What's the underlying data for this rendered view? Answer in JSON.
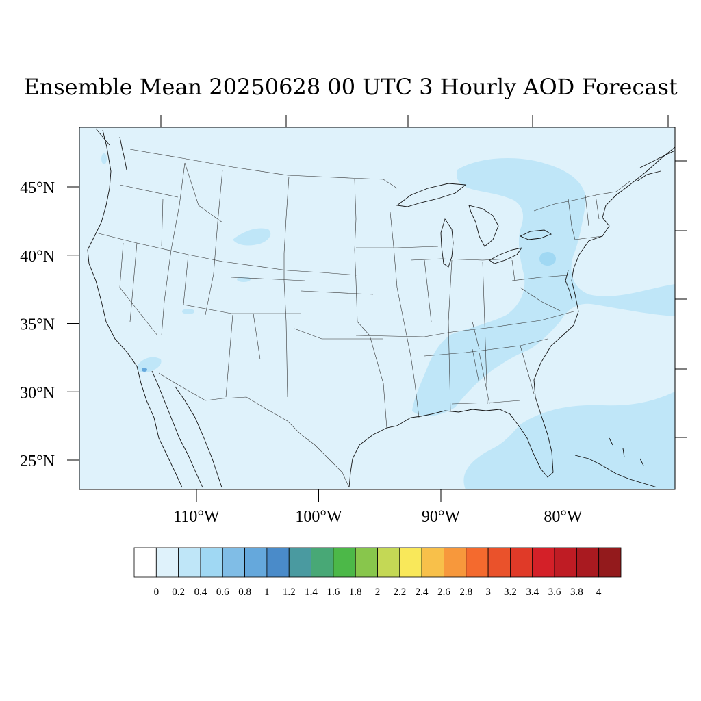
{
  "title": "Ensemble Mean 20250628 00 UTC 3 Hourly AOD Forecast",
  "map": {
    "background_color": "#dff2fb",
    "field_colors": {
      "level_02_04": "#bfe6f8",
      "level_04_06": "#a0d8f3"
    },
    "lat_labels": [
      {
        "text": "45°N",
        "lat": 45
      },
      {
        "text": "40°N",
        "lat": 40
      },
      {
        "text": "35°N",
        "lat": 35
      },
      {
        "text": "30°N",
        "lat": 30
      },
      {
        "text": "25°N",
        "lat": 25
      }
    ],
    "lon_labels": [
      {
        "text": "110°W",
        "lon": -110
      },
      {
        "text": "100°W",
        "lon": -100
      },
      {
        "text": "90°W",
        "lon": -90
      },
      {
        "text": "80°W",
        "lon": -80
      }
    ]
  },
  "colorbar": {
    "colors": [
      "#ffffff",
      "#dff2fb",
      "#bfe6f8",
      "#a0d8f3",
      "#80bde6",
      "#65a8dc",
      "#4a8bc9",
      "#4a9aa0",
      "#48a876",
      "#4cb848",
      "#88c64c",
      "#c4d855",
      "#f9e85a",
      "#f8c04a",
      "#f7983c",
      "#f46a2e",
      "#ea522b",
      "#e03a28",
      "#d42028",
      "#bf1c24",
      "#a91a20",
      "#931a1c"
    ],
    "labels": [
      "0",
      "0.2",
      "0.4",
      "0.6",
      "0.8",
      "1",
      "1.2",
      "1.4",
      "1.6",
      "1.8",
      "2",
      "2.2",
      "2.4",
      "2.6",
      "2.8",
      "3",
      "3.2",
      "3.4",
      "3.6",
      "3.8",
      "4"
    ]
  }
}
